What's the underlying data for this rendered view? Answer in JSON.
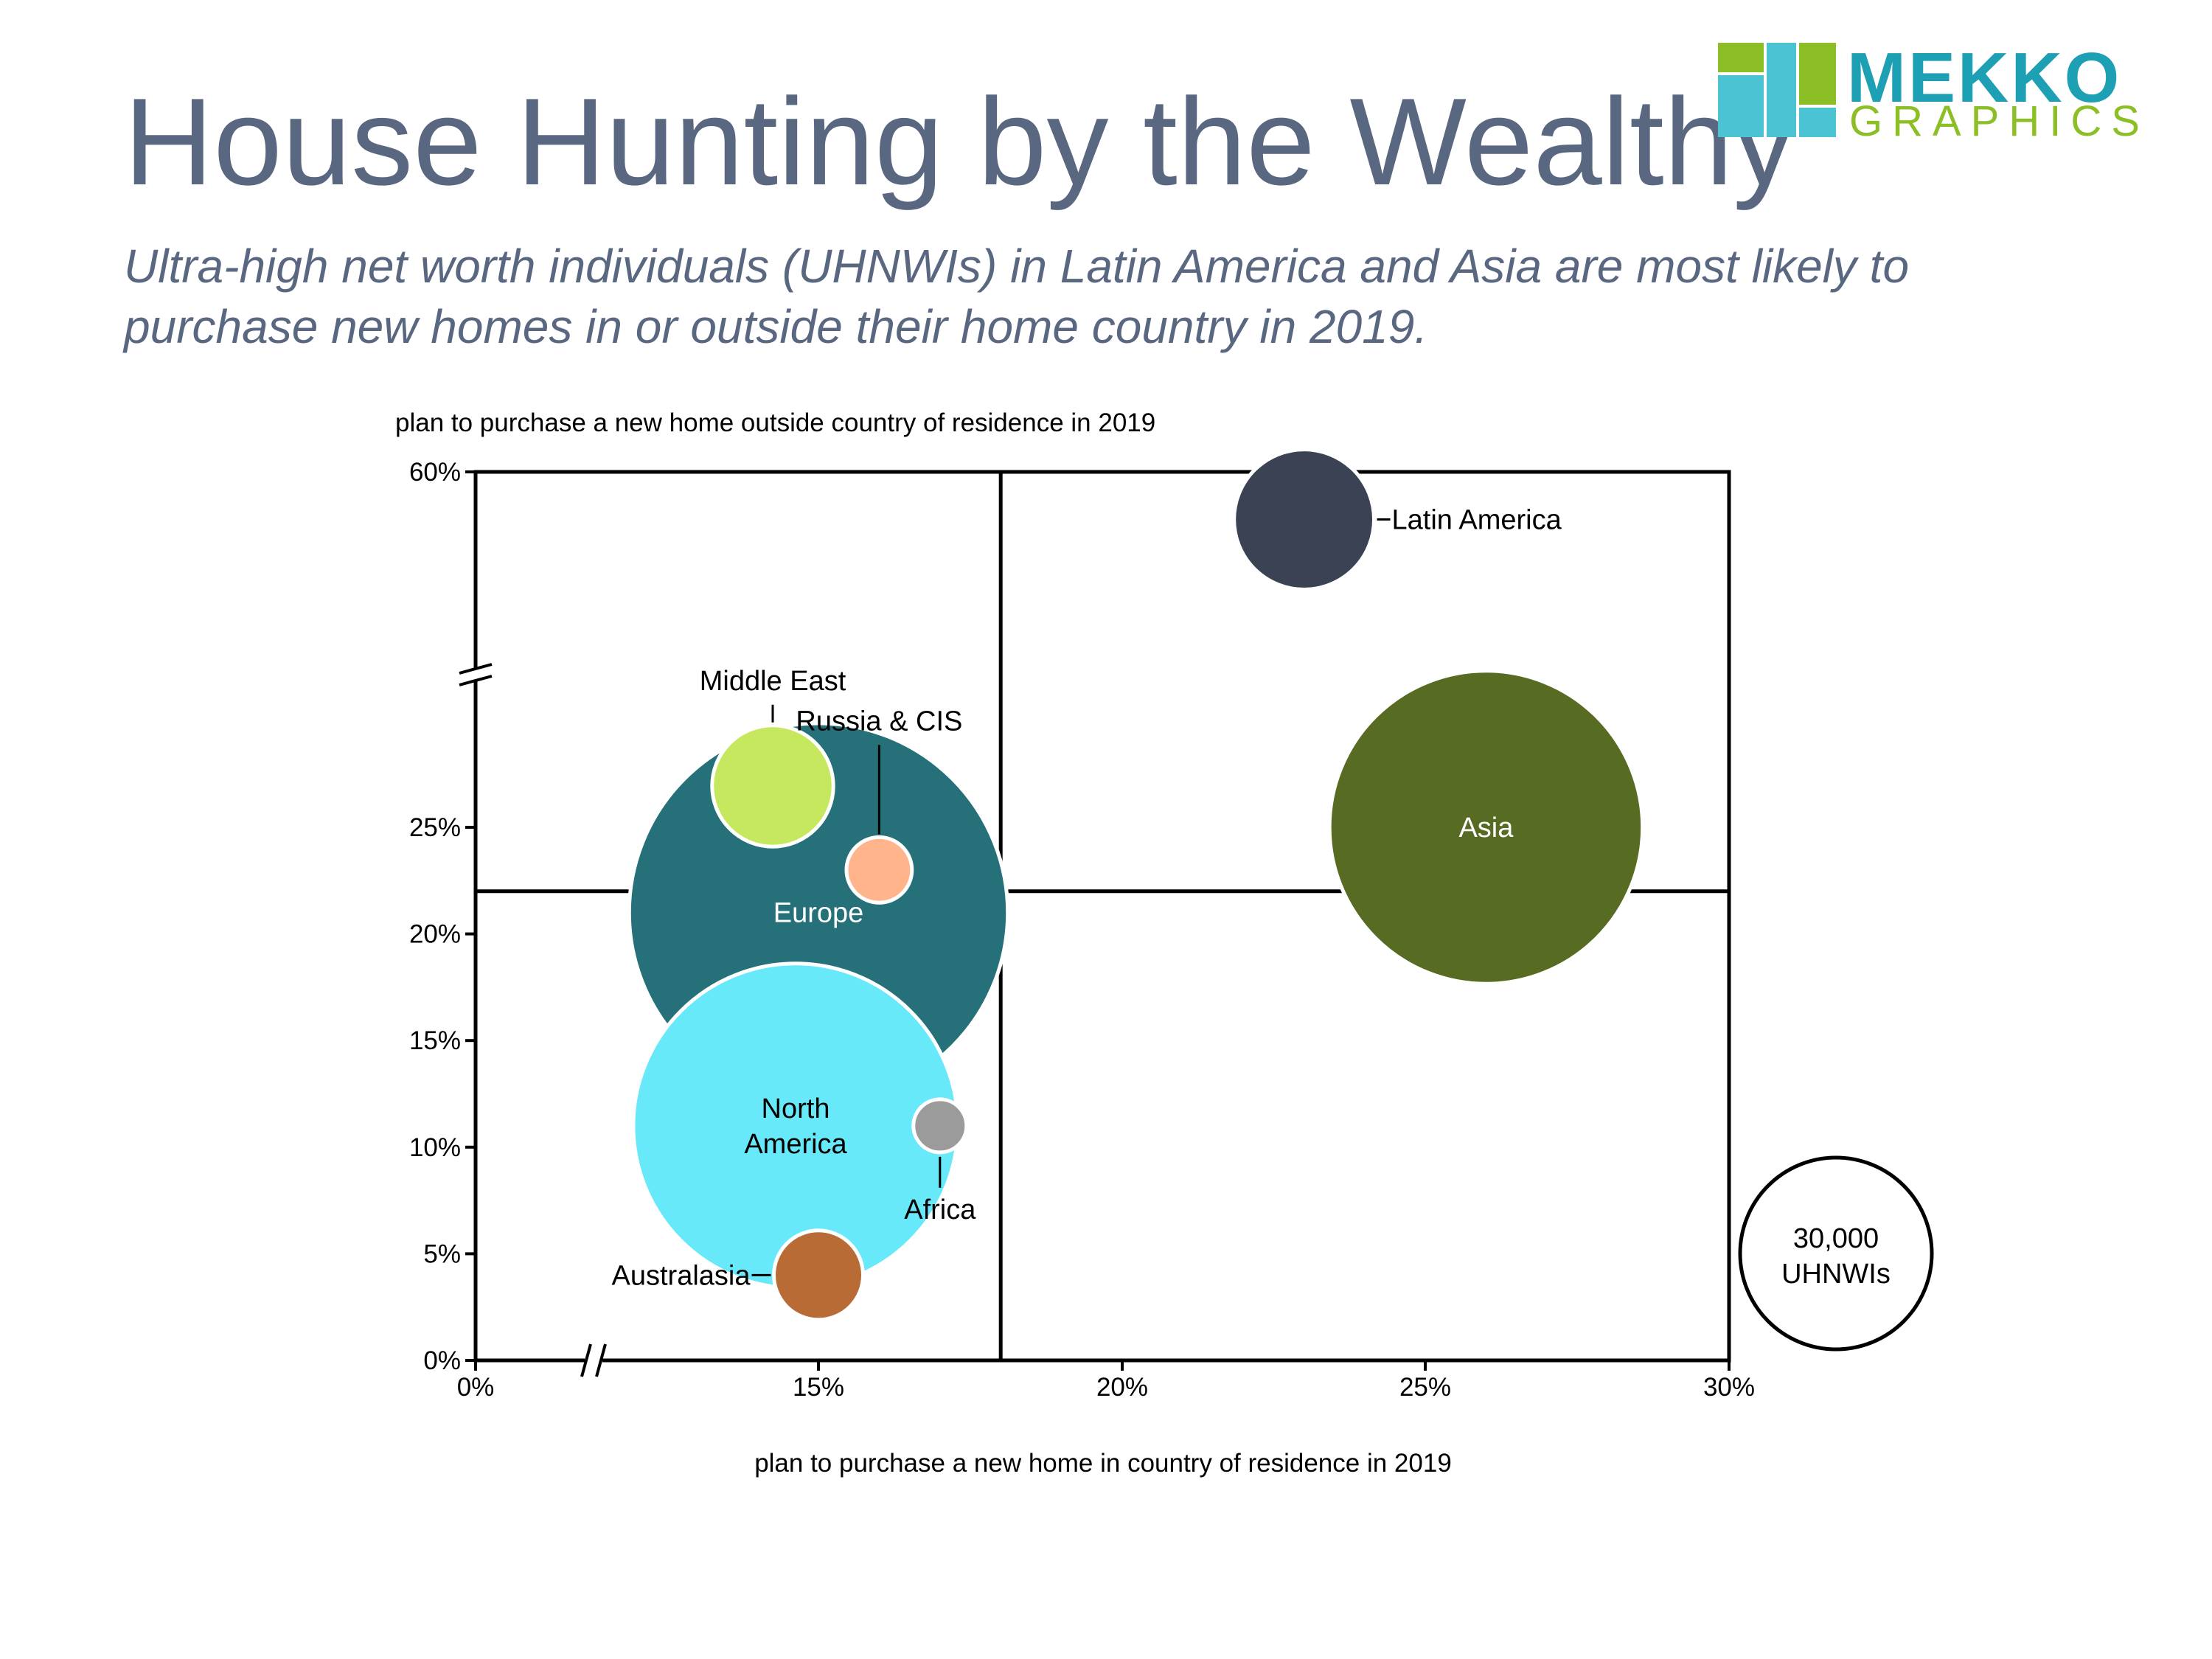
{
  "title": "House Hunting by the Wealthy",
  "subtitle": "Ultra-high net worth individuals (UHNWIs) in Latin America and Asia are most likely to purchase new homes in or outside their home country in 2019.",
  "logo": {
    "line1": "MEKKO",
    "line2": "GRAPHICS"
  },
  "colors": {
    "title": "#5a6781",
    "logo_blue": "#1d9fb4",
    "logo_green": "#8cbf26",
    "logo_teal": "#4cc3d3"
  },
  "chart_data": {
    "type": "scatter",
    "subtype": "bubble",
    "xlabel": "plan to purchase a new home in country of residence in 2019",
    "ylabel": "plan to purchase a new home outside country of residence in 2019",
    "x_axis": {
      "ticks": [
        0,
        15,
        20,
        25,
        30
      ],
      "tick_labels": [
        "0%",
        "15%",
        "20%",
        "25%",
        "30%"
      ],
      "range": [
        0,
        30
      ],
      "axis_break": true
    },
    "y_axis": {
      "ticks": [
        0,
        5,
        10,
        15,
        20,
        25,
        60
      ],
      "tick_labels": [
        "0%",
        "5%",
        "10%",
        "15%",
        "20%",
        "25%",
        "60%"
      ],
      "range": [
        0,
        60
      ],
      "axis_break": true
    },
    "quadrant_lines": {
      "x": 18,
      "y": 22
    },
    "size_legend": {
      "label_line1": "30,000",
      "label_line2": "UHNWIs",
      "value": 30000
    },
    "points": [
      {
        "name": "Latin America",
        "label": "Latin America",
        "x": 23,
        "y": 55,
        "size": 16000,
        "color": "#3b4253",
        "label_position": "right",
        "label_color": "#000000"
      },
      {
        "name": "Asia",
        "label": "Asia",
        "x": 26,
        "y": 25,
        "size": 80000,
        "color": "#586b23",
        "label_position": "center",
        "label_color": "#ffffff"
      },
      {
        "name": "Middle East",
        "label": "Middle East",
        "x": 13,
        "y": 27,
        "size": 12000,
        "color": "#c5e85e",
        "label_position": "above",
        "label_color": "#000000"
      },
      {
        "name": "Europe",
        "label": "Europe",
        "x": 15,
        "y": 21,
        "size": 117000,
        "color": "#26707a",
        "label_position": "center",
        "label_color": "#ffffff"
      },
      {
        "name": "Russia & CIS",
        "label": "Russia & CIS",
        "x": 16,
        "y": 23,
        "size": 3500,
        "color": "#ffb48c",
        "label_position": "above",
        "label_color": "#000000"
      },
      {
        "name": "North America",
        "label_lines": [
          "North",
          "America"
        ],
        "x": 14,
        "y": 11,
        "size": 86000,
        "color": "#67e9f9",
        "label_position": "center",
        "label_color": "#000000"
      },
      {
        "name": "Africa",
        "label": "Africa",
        "x": 17,
        "y": 11,
        "size": 2300,
        "color": "#9b9b9b",
        "label_position": "below",
        "label_color": "#000000"
      },
      {
        "name": "Australasia",
        "label": "Australasia",
        "x": 15,
        "y": 4,
        "size": 6500,
        "color": "#b86b35",
        "label_position": "left",
        "label_color": "#000000"
      }
    ]
  }
}
